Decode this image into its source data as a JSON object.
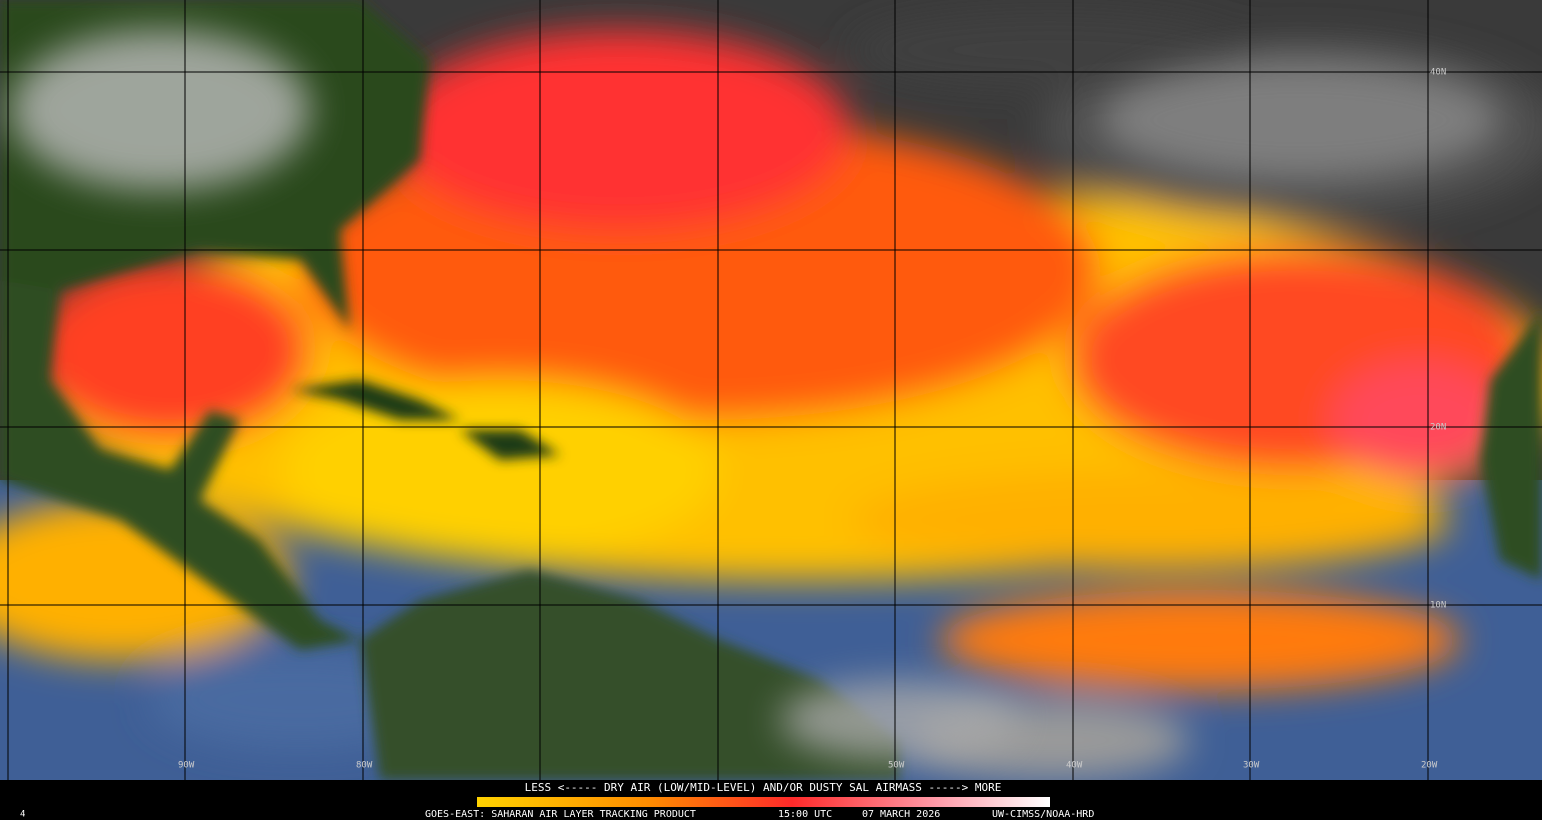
{
  "map": {
    "lat_labels": [
      "40N",
      "20N",
      "10N"
    ],
    "lon_labels": [
      "90W",
      "80W",
      "50W",
      "40W",
      "30W",
      "20W"
    ]
  },
  "legend": {
    "caption": "LESS <----- DRY AIR (LOW/MID-LEVEL) AND/OR DUSTY SAL AIRMASS -----> MORE"
  },
  "footer": {
    "product": "GOES-EAST: SAHARAN AIR LAYER TRACKING PRODUCT",
    "time": "15:00 UTC",
    "date": "07 MARCH 2026",
    "credit": "UW-CIMSS/NOAA-HRD",
    "frame": "4"
  }
}
